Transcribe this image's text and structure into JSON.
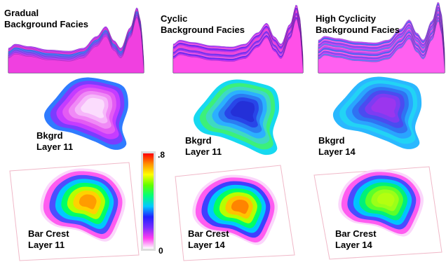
{
  "panels": [
    {
      "title": [
        "Gradual",
        "Background Facies"
      ],
      "bkgrd_label": [
        "Bkgrd",
        "Layer 11"
      ],
      "bar_label": [
        "Bar Crest",
        "Layer 11"
      ],
      "bkgrd_colors": [
        "#2f7bff",
        "#7b3cff",
        "#c63cff",
        "#e35cf3",
        "#f08af6",
        "#f6b7fa",
        "#fbdcfd"
      ],
      "bar_colors": [
        "#ff5cf0",
        "#4d4dff",
        "#00c8ff",
        "#00ff66",
        "#b6ff00",
        "#ffd200",
        "#ff9c00"
      ]
    },
    {
      "title": [
        "Cyclic",
        "Background Facies"
      ],
      "bkgrd_label": [
        "Bkgrd",
        "Layer 11"
      ],
      "bar_label": [
        "Bar Crest",
        "Layer 14"
      ],
      "bkgrd_colors": [
        "#16d9f0",
        "#3cf07a",
        "#3ed9c4",
        "#2bb0ff",
        "#2a7df2",
        "#2846e8",
        "#2430d8"
      ],
      "bar_colors": [
        "#ff5cf0",
        "#3f3fff",
        "#00c8ff",
        "#00ff66",
        "#b6ff00",
        "#ffc400",
        "#ff8400"
      ]
    },
    {
      "title": [
        "High Cyclicity",
        "Background Facies"
      ],
      "bkgrd_label": [
        "Bkgrd",
        "Layer 14"
      ],
      "bar_label": [
        "Bar Crest",
        "Layer 14"
      ],
      "bkgrd_colors": [
        "#2ab8ff",
        "#22d3f5",
        "#2aa4ff",
        "#2f73f2",
        "#4a4cf0",
        "#7d3cf2",
        "#9b36ee"
      ],
      "bar_colors": [
        "#ff5cf0",
        "#4b4bff",
        "#00c4ff",
        "#00f07a",
        "#5cff2a",
        "#9bff18",
        "#b4ff10"
      ]
    }
  ],
  "colorbar": {
    "max_label": ".8",
    "min_label": "0",
    "stops": [
      "#ffffff",
      "#ff3cf0",
      "#7a2cff",
      "#2020ff",
      "#00c8ff",
      "#00ff7a",
      "#60ff00",
      "#ffff00",
      "#ff9000",
      "#ff0000"
    ]
  }
}
